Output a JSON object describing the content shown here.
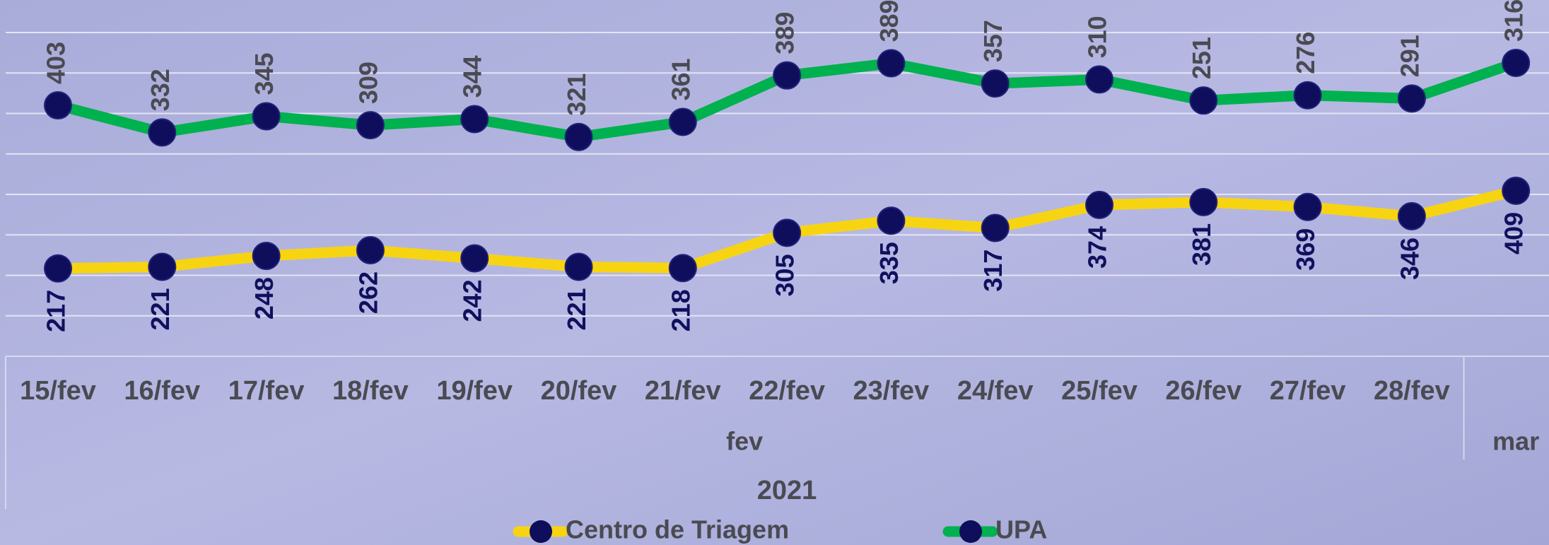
{
  "chart_data": {
    "type": "line",
    "stacked": true,
    "categories": [
      "15/fev",
      "16/fev",
      "17/fev",
      "18/fev",
      "19/fev",
      "20/fev",
      "21/fev",
      "22/fev",
      "23/fev",
      "24/fev",
      "25/fev",
      "26/fev",
      "27/fev",
      "28/fev",
      null
    ],
    "groups": [
      {
        "label": "fev",
        "count": 14
      },
      {
        "label": "mar",
        "count": 1
      }
    ],
    "year": "2021",
    "series": [
      {
        "name": "Centro de Triagem",
        "color": "#f7d411",
        "marker_color": "#0e0e5c",
        "label_color": "#10105e",
        "values": [
          217,
          221,
          248,
          262,
          242,
          221,
          218,
          305,
          335,
          317,
          374,
          381,
          369,
          346,
          409
        ]
      },
      {
        "name": "UPA",
        "color": "#00b14f",
        "marker_color": "#0e0e5c",
        "label_color": "#4a4a52",
        "values": [
          403,
          332,
          345,
          309,
          344,
          321,
          361,
          389,
          389,
          357,
          310,
          251,
          276,
          291,
          316
        ]
      }
    ],
    "ylim": [
      0,
      800
    ],
    "yticks": [
      0,
      100,
      200,
      300,
      400,
      500,
      600,
      700,
      800
    ],
    "grid": true
  }
}
